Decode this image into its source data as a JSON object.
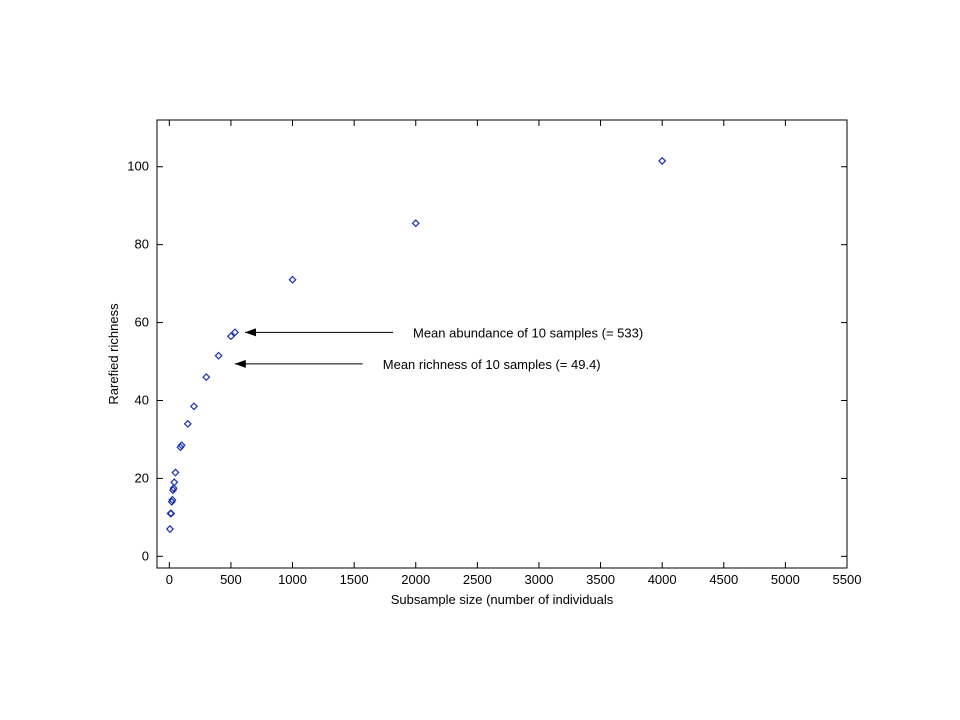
{
  "chart_data": {
    "type": "scatter",
    "title": "",
    "xlabel": "Subsample size (number of individuals",
    "ylabel": "Rarefied richness",
    "xlim": [
      -100,
      5500
    ],
    "ylim": [
      -3,
      112
    ],
    "xticks": [
      0,
      500,
      1000,
      1500,
      2000,
      2500,
      3000,
      3500,
      4000,
      4500,
      5000,
      5500
    ],
    "yticks": [
      0,
      20,
      40,
      60,
      80,
      100
    ],
    "grid": false,
    "legend": "none",
    "marker_color": "#1a2fb0",
    "points": [
      {
        "x": 5,
        "y": 7
      },
      {
        "x": 10,
        "y": 11
      },
      {
        "x": 15,
        "y": 11
      },
      {
        "x": 20,
        "y": 14
      },
      {
        "x": 25,
        "y": 14.5
      },
      {
        "x": 30,
        "y": 17
      },
      {
        "x": 35,
        "y": 17.5
      },
      {
        "x": 40,
        "y": 19
      },
      {
        "x": 50,
        "y": 21.5
      },
      {
        "x": 90,
        "y": 28
      },
      {
        "x": 100,
        "y": 28.5
      },
      {
        "x": 150,
        "y": 34
      },
      {
        "x": 200,
        "y": 38.5
      },
      {
        "x": 300,
        "y": 46
      },
      {
        "x": 400,
        "y": 51.5
      },
      {
        "x": 500,
        "y": 56.5
      },
      {
        "x": 533,
        "y": 57.5
      },
      {
        "x": 1000,
        "y": 71
      },
      {
        "x": 2000,
        "y": 85.5
      },
      {
        "x": 4000,
        "y": 101.5
      }
    ],
    "annotations": [
      {
        "text": "Mean abundance of 10 samples (= 533)",
        "x": 533,
        "y": 57.5
      },
      {
        "text": "Mean richness of 10 samples (= 49.4)",
        "x": 450,
        "y": 49.4
      }
    ]
  }
}
